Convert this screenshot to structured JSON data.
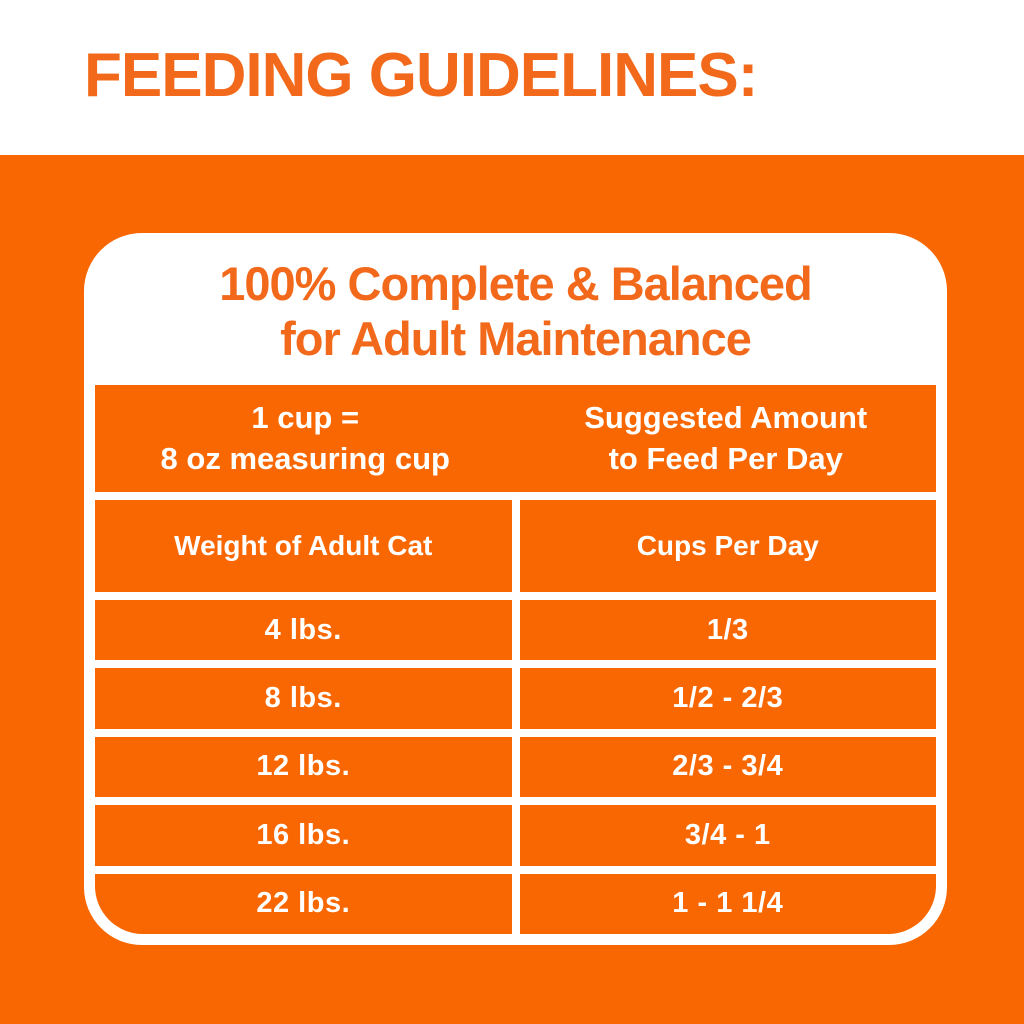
{
  "colors": {
    "orange_fill": "#f96702",
    "orange_text": "#f2691b",
    "white": "#ffffff",
    "top_hairline": "#e2e2e2"
  },
  "page_title": "FEEDING GUIDELINES:",
  "card": {
    "heading": {
      "line1": "100% Complete & Balanced",
      "line2": "for Adult Maintenance"
    },
    "table": {
      "col_headers": {
        "left": {
          "line1": "1 cup =",
          "line2": "8 oz measuring cup"
        },
        "right": {
          "line1": "Suggested Amount",
          "line2": "to Feed Per Day"
        }
      },
      "sub_headers": {
        "left": "Weight of Adult Cat",
        "right": "Cups Per Day"
      },
      "rows": [
        {
          "weight": "4 lbs.",
          "cups": "1/3"
        },
        {
          "weight": "8 lbs.",
          "cups": "1/2 - 2/3"
        },
        {
          "weight": "12 lbs.",
          "cups": "2/3 - 3/4"
        },
        {
          "weight": "16 lbs.",
          "cups": "3/4 - 1"
        },
        {
          "weight": "22 lbs.",
          "cups": "1 - 1 1/4"
        }
      ]
    }
  },
  "chart_data": {
    "type": "table",
    "title": "100% Complete & Balanced for Adult Maintenance",
    "note_left": "1 cup = 8 oz measuring cup",
    "note_right": "Suggested Amount to Feed Per Day",
    "columns": [
      "Weight of Adult Cat",
      "Cups Per Day"
    ],
    "rows": [
      [
        "4 lbs.",
        "1/3"
      ],
      [
        "8 lbs.",
        "1/2 - 2/3"
      ],
      [
        "12 lbs.",
        "2/3 - 3/4"
      ],
      [
        "16 lbs.",
        "3/4 - 1"
      ],
      [
        "22 lbs.",
        "1 - 1 1/4"
      ]
    ]
  }
}
